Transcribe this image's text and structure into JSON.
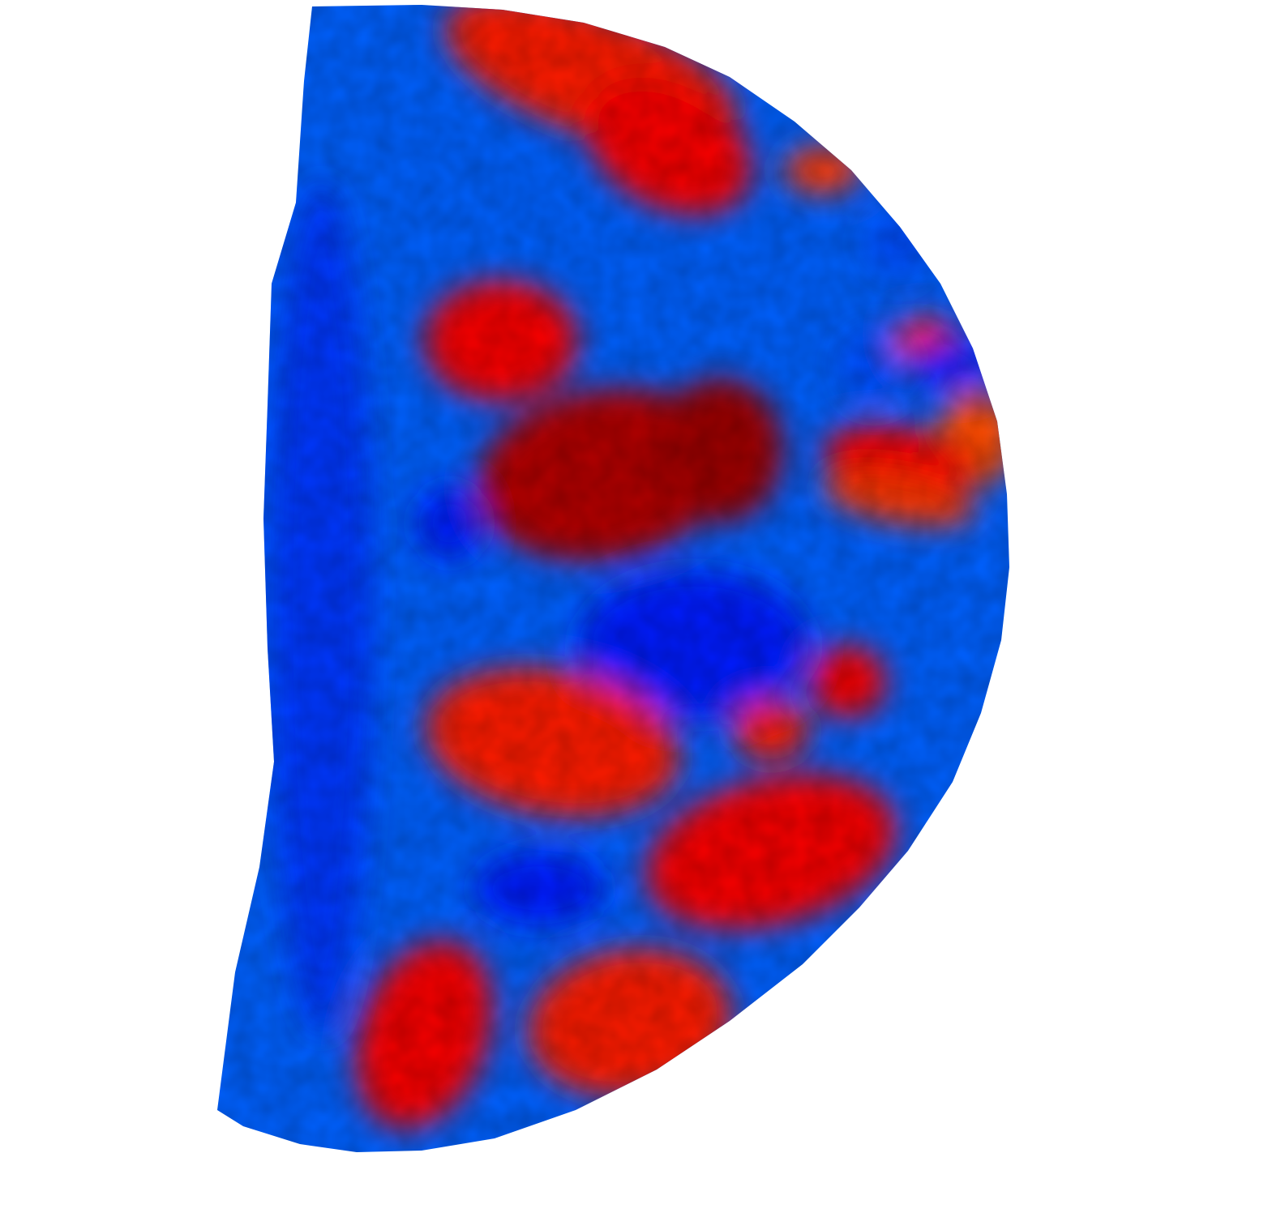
{
  "chart_data": {
    "type": "heatmap",
    "title": "",
    "xlabel": "",
    "ylabel": "",
    "grid": false,
    "colorbar": false,
    "colormap": "jet",
    "colormap_stops": [
      "#00008f",
      "#0000ff",
      "#0080ff",
      "#00ffff",
      "#80ff80",
      "#ffff00",
      "#ff8000",
      "#ff0000",
      "#800000"
    ],
    "value_range": [
      0,
      1
    ],
    "background_value": 0.22,
    "features": [
      {
        "name": "upper-arc-band",
        "value": 0.85,
        "cx": 0.46,
        "cy": 0.06,
        "rx": 0.12,
        "ry": 0.05,
        "rot": 20
      },
      {
        "name": "upper-right-band",
        "value": 0.88,
        "cx": 0.52,
        "cy": 0.12,
        "rx": 0.07,
        "ry": 0.05,
        "rot": 30
      },
      {
        "name": "right-scatter-1",
        "value": 0.82,
        "cx": 0.64,
        "cy": 0.14,
        "rx": 0.03,
        "ry": 0.02,
        "rot": 0
      },
      {
        "name": "right-scatter-2",
        "value": 0.2,
        "cx": 0.7,
        "cy": 0.2,
        "rx": 0.025,
        "ry": 0.025,
        "rot": 0
      },
      {
        "name": "right-scatter-3",
        "value": 0.85,
        "cx": 0.72,
        "cy": 0.28,
        "rx": 0.025,
        "ry": 0.02,
        "rot": 0
      },
      {
        "name": "right-scatter-4",
        "value": 0.15,
        "cx": 0.74,
        "cy": 0.3,
        "rx": 0.03,
        "ry": 0.02,
        "rot": 0
      },
      {
        "name": "right-scatter-5",
        "value": 0.8,
        "cx": 0.76,
        "cy": 0.36,
        "rx": 0.03,
        "ry": 0.04,
        "rot": 0
      },
      {
        "name": "right-scatter-6",
        "value": 0.88,
        "cx": 0.7,
        "cy": 0.38,
        "rx": 0.06,
        "ry": 0.03,
        "rot": 10
      },
      {
        "name": "right-scatter-7",
        "value": 0.2,
        "cx": 0.68,
        "cy": 0.3,
        "rx": 0.025,
        "ry": 0.03,
        "rot": 0
      },
      {
        "name": "mid-left-lobe",
        "value": 0.88,
        "cx": 0.39,
        "cy": 0.28,
        "rx": 0.06,
        "ry": 0.05,
        "rot": 0
      },
      {
        "name": "central-core",
        "value": 0.95,
        "cx": 0.47,
        "cy": 0.39,
        "rx": 0.1,
        "ry": 0.07,
        "rot": -10
      },
      {
        "name": "central-right-core",
        "value": 0.97,
        "cx": 0.56,
        "cy": 0.37,
        "rx": 0.05,
        "ry": 0.06,
        "rot": 0
      },
      {
        "name": "central-hole",
        "value": 0.15,
        "cx": 0.35,
        "cy": 0.43,
        "rx": 0.025,
        "ry": 0.03,
        "rot": 0
      },
      {
        "name": "right-stripes",
        "value": 0.82,
        "cx": 0.7,
        "cy": 0.41,
        "rx": 0.06,
        "ry": 0.02,
        "rot": 10
      },
      {
        "name": "mid-blue-basin",
        "value": 0.15,
        "cx": 0.54,
        "cy": 0.53,
        "rx": 0.09,
        "ry": 0.06,
        "rot": 0
      },
      {
        "name": "lower-right-blob",
        "value": 0.88,
        "cx": 0.66,
        "cy": 0.56,
        "rx": 0.03,
        "ry": 0.03,
        "rot": 0
      },
      {
        "name": "lower-right-blob-2",
        "value": 0.85,
        "cx": 0.6,
        "cy": 0.6,
        "rx": 0.03,
        "ry": 0.025,
        "rot": 0
      },
      {
        "name": "lower-band",
        "value": 0.85,
        "cx": 0.43,
        "cy": 0.61,
        "rx": 0.1,
        "ry": 0.06,
        "rot": 10
      },
      {
        "name": "lower-right-band",
        "value": 0.88,
        "cx": 0.6,
        "cy": 0.7,
        "rx": 0.1,
        "ry": 0.06,
        "rot": -15
      },
      {
        "name": "lower-blue-pocket",
        "value": 0.15,
        "cx": 0.42,
        "cy": 0.73,
        "rx": 0.05,
        "ry": 0.03,
        "rot": 0
      },
      {
        "name": "bottom-left-fan",
        "value": 0.88,
        "cx": 0.33,
        "cy": 0.85,
        "rx": 0.05,
        "ry": 0.08,
        "rot": 20
      },
      {
        "name": "bottom-mid-fan",
        "value": 0.85,
        "cx": 0.49,
        "cy": 0.84,
        "rx": 0.08,
        "ry": 0.06,
        "rot": -10
      },
      {
        "name": "left-blue-margin",
        "value": 0.18,
        "cx": 0.25,
        "cy": 0.5,
        "rx": 0.04,
        "ry": 0.35,
        "rot": 0
      }
    ]
  }
}
